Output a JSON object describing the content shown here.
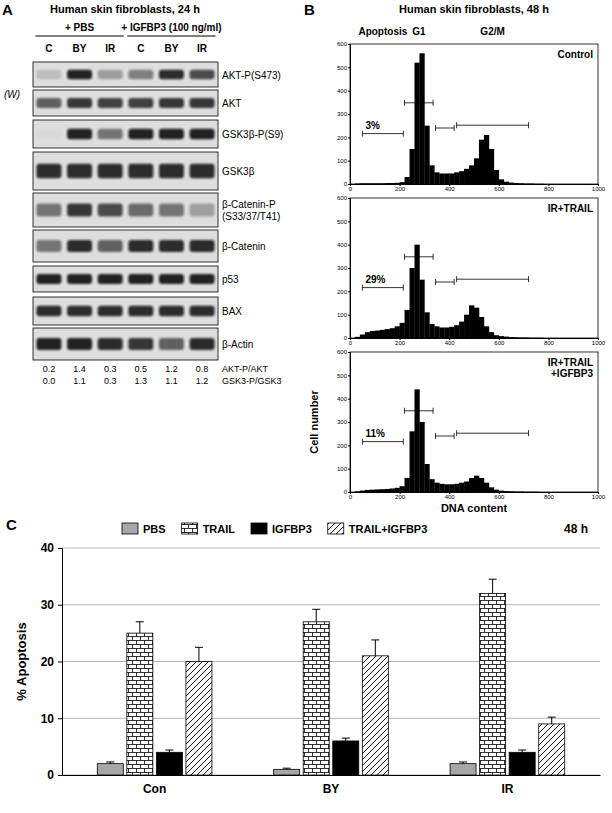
{
  "blot": {
    "panel_label": "A",
    "title": "Human skin fibroblasts, 24 h",
    "side_label": "(W)",
    "groups": [
      {
        "label": "+ PBS",
        "lanes": [
          "C",
          "BY",
          "IR"
        ]
      },
      {
        "label": "+ IGFBP3 (100 ng/ml)",
        "lanes": [
          "C",
          "BY",
          "IR"
        ]
      }
    ],
    "rows": [
      {
        "label": [
          "AKT-P(S473)"
        ],
        "band_intensity": [
          0.15,
          0.9,
          0.3,
          0.45,
          0.85,
          0.7
        ]
      },
      {
        "label": [
          "AKT"
        ],
        "band_intensity": [
          0.6,
          0.8,
          0.75,
          0.75,
          0.8,
          0.8
        ]
      },
      {
        "label": [
          "GSK3β-P(S9)"
        ],
        "band_intensity": [
          0.02,
          0.9,
          0.5,
          0.9,
          0.9,
          0.9
        ]
      },
      {
        "label": [
          "GSK3β"
        ],
        "band_intensity": [
          0.85,
          0.85,
          0.85,
          0.85,
          0.85,
          0.85
        ]
      },
      {
        "label": [
          "β-Catenin-P",
          "(S33/37/T41)"
        ],
        "band_intensity": [
          0.5,
          0.8,
          0.7,
          0.55,
          0.5,
          0.3
        ]
      },
      {
        "label": [
          "β-Catenin"
        ],
        "band_intensity": [
          0.5,
          0.85,
          0.6,
          0.85,
          0.85,
          0.85
        ]
      },
      {
        "label": [
          "p53"
        ],
        "band_intensity": [
          0.9,
          0.9,
          0.9,
          0.9,
          0.9,
          0.9
        ]
      },
      {
        "label": [
          "BAX"
        ],
        "band_intensity": [
          0.85,
          0.85,
          0.85,
          0.85,
          0.85,
          0.85
        ]
      },
      {
        "label": [
          "β-Actin"
        ],
        "band_intensity": [
          0.9,
          0.9,
          0.85,
          0.8,
          0.6,
          0.85
        ]
      }
    ],
    "ratios": [
      {
        "label": "AKT-P/AKT",
        "values": [
          "0.2",
          "1.4",
          "0.3",
          "0.5",
          "1.2",
          "0.8"
        ]
      },
      {
        "label": "GSK3-P/GSK3",
        "values": [
          "0.0",
          "1.1",
          "0.3",
          "1.3",
          "1.1",
          "1.2"
        ]
      }
    ]
  },
  "flow": {
    "panel_label": "B",
    "title": "Human skin fibroblasts, 48 h",
    "gate_labels": [
      "Apoptosis",
      "G1",
      "G2/M"
    ]
  },
  "chart_data": [
    {
      "type": "histogram",
      "title": [
        "Control"
      ],
      "annotation": "3%",
      "color": "#000000",
      "bins": [
        0,
        20,
        40,
        60,
        80,
        100,
        120,
        140,
        160,
        180,
        200,
        220,
        240,
        260,
        280,
        300,
        320,
        340,
        360,
        380,
        400,
        420,
        440,
        460,
        480,
        500,
        520,
        540,
        560,
        580,
        600,
        620,
        640,
        660,
        680,
        700,
        720,
        740,
        760,
        780,
        800
      ],
      "values": [
        0,
        2,
        3,
        3,
        3,
        3,
        3,
        4,
        4,
        5,
        8,
        30,
        150,
        520,
        560,
        250,
        80,
        50,
        45,
        45,
        45,
        50,
        55,
        65,
        80,
        110,
        190,
        210,
        150,
        60,
        20,
        10,
        6,
        4,
        3,
        2,
        2,
        1,
        1,
        0
      ],
      "gates": [
        [
          50,
          215
        ],
        [
          220,
          335
        ],
        [
          345,
          420
        ],
        [
          430,
          720
        ]
      ],
      "xlim": [
        0,
        1000
      ],
      "xticks": [
        0,
        200,
        400,
        600,
        800,
        1000
      ],
      "ylim": [
        0,
        600
      ],
      "yticks": [
        0,
        100,
        200,
        300,
        400,
        500,
        600
      ]
    },
    {
      "type": "histogram",
      "title": [
        "IR+TRAIL"
      ],
      "annotation": "29%",
      "color": "#000000",
      "bins": [
        0,
        20,
        40,
        60,
        80,
        100,
        120,
        140,
        160,
        180,
        200,
        220,
        240,
        260,
        280,
        300,
        320,
        340,
        360,
        380,
        400,
        420,
        440,
        460,
        480,
        500,
        520,
        540,
        560,
        580,
        600,
        620,
        640,
        660,
        680,
        700,
        720,
        740,
        760,
        780,
        800
      ],
      "values": [
        0,
        5,
        15,
        25,
        30,
        32,
        35,
        38,
        42,
        50,
        65,
        120,
        300,
        400,
        250,
        110,
        60,
        50,
        45,
        45,
        48,
        55,
        70,
        100,
        140,
        130,
        90,
        50,
        25,
        12,
        8,
        6,
        4,
        3,
        2,
        2,
        1,
        1,
        1,
        0
      ],
      "gates": [
        [
          50,
          215
        ],
        [
          220,
          335
        ],
        [
          345,
          420
        ],
        [
          430,
          720
        ]
      ],
      "xlim": [
        0,
        1000
      ],
      "xticks": [
        0,
        200,
        400,
        600,
        800,
        1000
      ],
      "ylim": [
        0,
        600
      ],
      "yticks": [
        0,
        100,
        200,
        300,
        400,
        500,
        600
      ]
    },
    {
      "type": "histogram",
      "title": [
        "IR+TRAIL",
        "+IGFBP3"
      ],
      "annotation": "11%",
      "xlabel": "DNA content",
      "ylabel": "Cell number",
      "color": "#000000",
      "bins": [
        0,
        20,
        40,
        60,
        80,
        100,
        120,
        140,
        160,
        180,
        200,
        220,
        240,
        260,
        280,
        300,
        320,
        340,
        360,
        380,
        400,
        420,
        440,
        460,
        480,
        500,
        520,
        540,
        560,
        580,
        600,
        620,
        640,
        660,
        680,
        700,
        720,
        740,
        760,
        780,
        800
      ],
      "values": [
        0,
        3,
        6,
        9,
        10,
        11,
        12,
        13,
        15,
        18,
        25,
        60,
        260,
        440,
        300,
        120,
        55,
        40,
        35,
        33,
        33,
        35,
        40,
        45,
        60,
        70,
        60,
        40,
        20,
        10,
        6,
        4,
        3,
        2,
        2,
        1,
        1,
        1,
        0,
        0
      ],
      "gates": [
        [
          50,
          215
        ],
        [
          220,
          335
        ],
        [
          345,
          420
        ],
        [
          430,
          720
        ]
      ],
      "xlim": [
        0,
        1000
      ],
      "xticks": [
        0,
        200,
        400,
        600,
        800,
        1000
      ],
      "ylim": [
        0,
        600
      ],
      "yticks": [
        0,
        100,
        200,
        300,
        400,
        500,
        600
      ]
    },
    {
      "type": "bar",
      "panel_label": "C",
      "title": "48 h",
      "ylabel": "% Apoptosis",
      "categories": [
        "Con",
        "BY",
        "IR"
      ],
      "series": [
        {
          "name": "PBS",
          "color": "#a6a6a6",
          "values": [
            2,
            1,
            2
          ],
          "errors": [
            0.3,
            0.2,
            0.3
          ]
        },
        {
          "name": "TRAIL",
          "color": "#ffffff",
          "values": [
            25,
            27,
            32
          ],
          "errors": [
            2,
            2.2,
            2.5
          ]
        },
        {
          "name": "IGFBP3",
          "color": "#000000",
          "values": [
            4,
            6,
            4
          ],
          "errors": [
            0.4,
            0.5,
            0.4
          ]
        },
        {
          "name": "TRAIL+IGFBP3",
          "color": "#ffffff",
          "values": [
            20,
            21,
            9
          ],
          "errors": [
            2.5,
            2.8,
            1.2
          ]
        }
      ],
      "ylim": [
        0,
        40
      ],
      "yticks": [
        0,
        10,
        20,
        30,
        40
      ],
      "grid": true,
      "legend": "top"
    }
  ]
}
